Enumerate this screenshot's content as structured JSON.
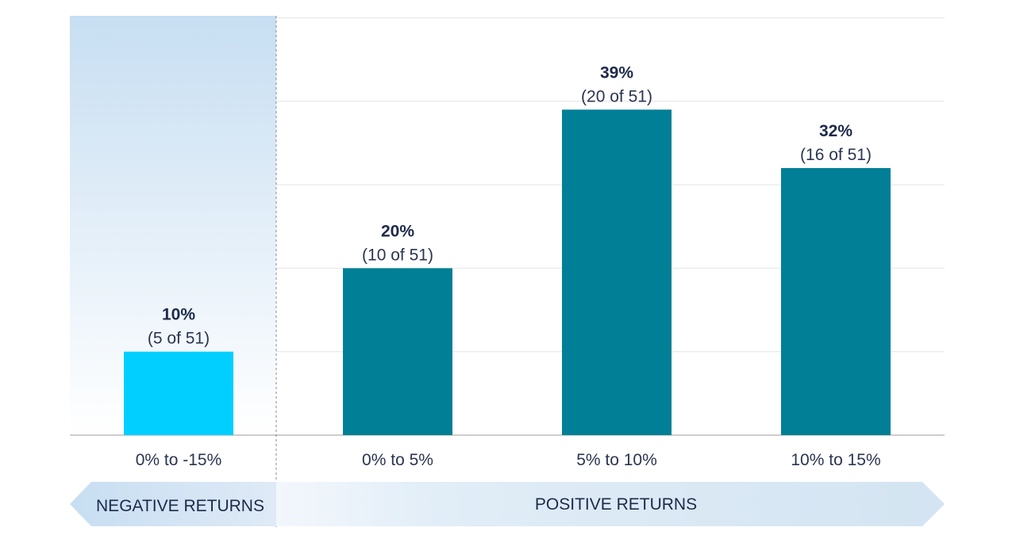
{
  "chart_data": {
    "type": "bar",
    "categories": [
      "0% to -15%",
      "0% to 5%",
      "5% to 10%",
      "10% to 15%"
    ],
    "values": [
      10,
      20,
      39,
      32
    ],
    "counts": [
      "(5 of 51)",
      "(10 of 51)",
      "(20 of 51)",
      "(16 of 51)"
    ],
    "value_labels": [
      "10%",
      "20%",
      "39%",
      "32%"
    ],
    "ylim": [
      0,
      50
    ],
    "grid": true,
    "bar_colors": [
      "#00cfff",
      "#007f96",
      "#007f96",
      "#007f96"
    ],
    "regions": [
      {
        "label": "NEGATIVE RETURNS",
        "categories": [
          0
        ]
      },
      {
        "label": "POSITIVE RETURNS",
        "categories": [
          1,
          2,
          3
        ]
      }
    ]
  }
}
